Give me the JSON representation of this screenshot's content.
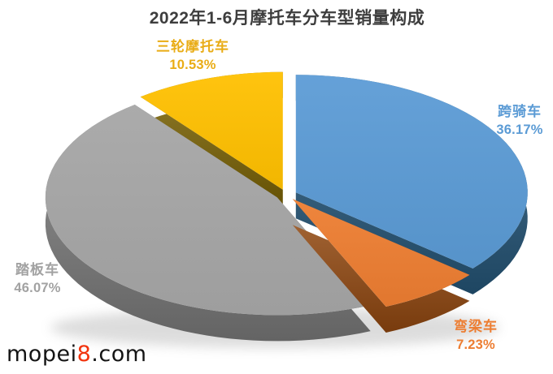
{
  "chart_data": {
    "type": "pie",
    "title": "2022年1-6月摩托车分车型销量构成",
    "style": "3d-exploded",
    "unit": "%",
    "legend": "none",
    "labels_position": "outside",
    "start_angle_deg": 0,
    "direction": "clockwise",
    "slices": [
      {
        "key": "straddle-motorcycle",
        "label": "跨骑车",
        "value": 36.17,
        "display": "36.17%",
        "color": "#5B9BD5",
        "side_color": "#26577A",
        "label_color": "#5B9BD5"
      },
      {
        "key": "underbone-motorcycle",
        "label": "弯梁车",
        "value": 7.23,
        "display": "7.23%",
        "color": "#ED7D31",
        "side_color": "#964A10",
        "label_color": "#ED7D31"
      },
      {
        "key": "scooter",
        "label": "踏板车",
        "value": 46.07,
        "display": "46.07%",
        "color": "#A6A6A6",
        "side_color": "#7D7D7D",
        "label_color": "#A2A2A2"
      },
      {
        "key": "three-wheel-motorcycle",
        "label": "三轮摩托车",
        "value": 10.53,
        "display": "10.53%",
        "color": "#FFC000",
        "side_color": "#7A6200",
        "label_color": "#E9AC15"
      }
    ]
  },
  "watermark": {
    "prefix": "mopei",
    "highlight": "8",
    "suffix": ".com",
    "highlight_color": "#F2330D",
    "text_color": "#141414"
  },
  "colors": {
    "background": "#FFFFFF",
    "title": "#3D3D3D"
  }
}
